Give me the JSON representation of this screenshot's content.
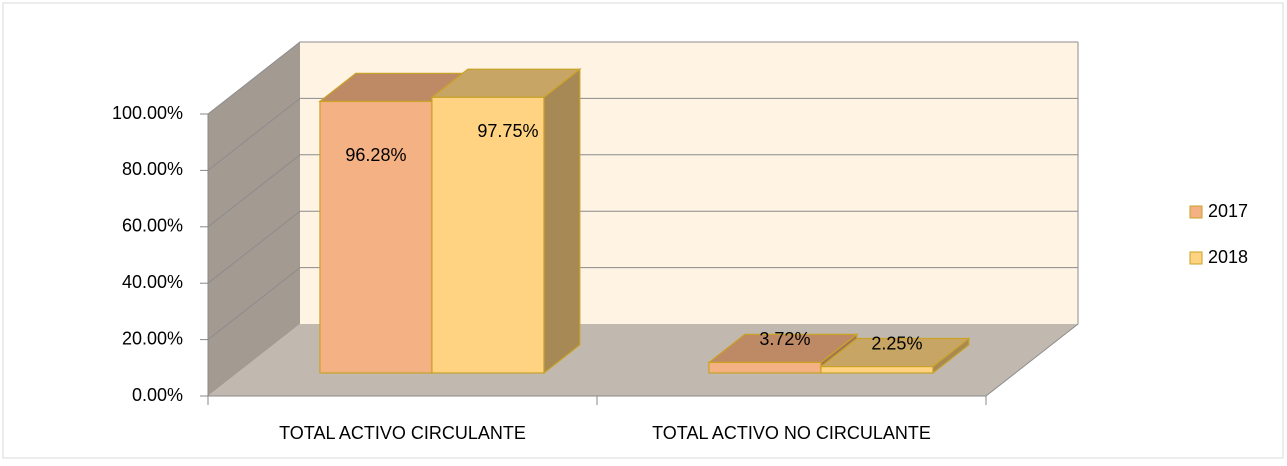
{
  "chart_data": {
    "type": "bar3d",
    "categories": [
      "TOTAL ACTIVO CIRCULANTE",
      "TOTAL ACTIVO NO CIRCULANTE"
    ],
    "series": [
      {
        "name": "2017",
        "color": "#f4b183",
        "values": [
          96.28,
          3.72
        ],
        "value_labels": [
          "96.28%",
          "3.72%"
        ]
      },
      {
        "name": "2018",
        "color": "#ffd382",
        "values": [
          97.75,
          2.25
        ],
        "value_labels": [
          "97.75%",
          "2.25%"
        ]
      }
    ],
    "ylim": [
      0,
      100
    ],
    "yticks": [
      {
        "value": 0,
        "label": "0.00%"
      },
      {
        "value": 20,
        "label": "20.00%"
      },
      {
        "value": 40,
        "label": "40.00%"
      },
      {
        "value": 60,
        "label": "60.00%"
      },
      {
        "value": 80,
        "label": "80.00%"
      },
      {
        "value": 100,
        "label": "100.00%"
      }
    ],
    "grid": true,
    "legend": "right"
  }
}
